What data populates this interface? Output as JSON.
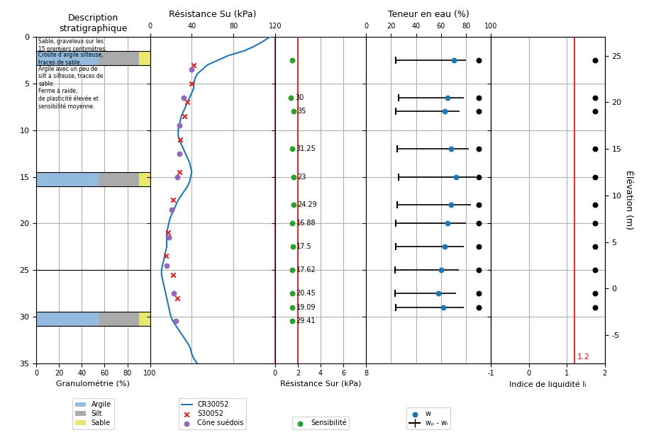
{
  "chart_data": [
    {
      "type": "bar",
      "orientation": "horizontal",
      "stacked": true,
      "title": "Description\nstratigraphique",
      "x_label": "Granulométrie (%)",
      "band_top": [
        1.5,
        14.5,
        29.5
      ],
      "band_bottom": [
        3.0,
        16.0,
        31.0
      ],
      "series": [
        {
          "name": "Argile",
          "color": "#92BBDD",
          "values": [
            55,
            55,
            55
          ]
        },
        {
          "name": "Silt",
          "color": "#AAAAAA",
          "values": [
            35,
            35,
            35
          ]
        },
        {
          "name": "Sable",
          "color": "#E8E870",
          "values": [
            10,
            10,
            10
          ]
        }
      ],
      "hlines": [
        0.0,
        1.5,
        3.0,
        14.5,
        16.0,
        25.0,
        29.5,
        31.0
      ],
      "annotations": [
        {
          "text": "Sable, graveleux sur les\n15 premiers centimètres.",
          "x": 2,
          "y": 0.15
        },
        {
          "text": "Croûte d’argile silteuse,\ntraces de sable.",
          "x": 2,
          "y": 1.6
        },
        {
          "text": "Argile avec un peu de\nsilt à silteuse, traces de\nsable.\nFerme à raide,\nde plasticité élevée et\nsensibilité moyenne.",
          "x": 2,
          "y": 3.1
        }
      ],
      "xlim": [
        0,
        100
      ],
      "xticks": [
        0,
        20,
        40,
        60,
        80,
        100
      ],
      "ylim": [
        35,
        0
      ],
      "yticks": [
        0,
        5,
        10,
        15,
        20,
        25,
        30,
        35
      ],
      "grid": true,
      "legend": "lower center"
    },
    {
      "type": "line",
      "title": "Résistance Su (kPa)",
      "vlines": [
        {
          "x": 120,
          "color": "#FF0000"
        }
      ],
      "series": [
        {
          "name": "CR30052",
          "type": "line",
          "color": "#1f77b4",
          "line_style": "solid",
          "x": [
            115,
            108,
            100,
            90,
            75,
            65,
            55,
            50,
            45,
            43,
            42,
            42,
            40,
            38,
            36,
            34,
            32,
            30,
            29,
            28,
            27,
            27,
            28,
            30,
            32,
            34,
            36,
            38,
            39,
            40,
            39,
            38,
            36,
            33,
            30,
            27,
            25,
            23,
            21,
            19,
            18,
            17,
            16,
            16,
            16,
            16,
            15,
            14,
            13,
            12,
            11,
            11,
            12,
            13,
            14,
            15,
            16,
            17,
            18,
            19,
            20,
            22,
            25,
            28,
            31,
            34,
            37,
            39,
            40,
            42,
            45
          ],
          "y": [
            0.0,
            0.5,
            1.0,
            1.5,
            2.0,
            2.5,
            3.0,
            3.5,
            4.0,
            4.5,
            5.0,
            5.5,
            6.0,
            6.5,
            7.0,
            7.5,
            8.0,
            8.5,
            9.0,
            9.5,
            10.0,
            10.5,
            11.0,
            11.5,
            12.0,
            12.5,
            13.0,
            13.5,
            14.0,
            14.5,
            15.0,
            15.5,
            16.0,
            16.5,
            17.0,
            17.5,
            18.0,
            18.5,
            19.0,
            19.5,
            20.0,
            20.5,
            21.0,
            21.5,
            22.0,
            22.5,
            23.0,
            23.5,
            24.0,
            24.5,
            25.0,
            25.5,
            26.0,
            26.5,
            27.0,
            27.5,
            28.0,
            28.5,
            29.0,
            29.5,
            30.0,
            30.5,
            31.0,
            31.5,
            32.0,
            32.5,
            33.0,
            33.5,
            34.0,
            34.5,
            35.0
          ]
        },
        {
          "name": "S30052",
          "type": "scatter",
          "marker": "x",
          "color": "#d62728",
          "x": [
            42,
            40,
            36,
            33,
            29,
            28,
            22,
            17,
            15,
            22,
            26
          ],
          "y": [
            3.0,
            5.0,
            7.0,
            8.5,
            11.0,
            14.5,
            17.5,
            21.0,
            23.5,
            25.5,
            28.0
          ]
        },
        {
          "name": "Cône suédois",
          "type": "scatter",
          "marker": "o",
          "color": "#9467bd",
          "x": [
            40,
            32,
            28,
            28,
            26,
            21,
            18,
            16,
            23,
            25
          ],
          "y": [
            3.5,
            6.5,
            9.5,
            12.5,
            15.0,
            18.5,
            21.5,
            24.5,
            27.5,
            30.5
          ]
        }
      ],
      "xlim": [
        0,
        120
      ],
      "xticks": [
        0,
        40,
        80,
        120
      ],
      "ylim": [
        35,
        0
      ],
      "yticks": [
        0,
        5,
        10,
        15,
        20,
        25,
        30,
        35
      ],
      "tick_labels": "x",
      "grid": true,
      "legend": "lower center"
    },
    {
      "type": "scatter",
      "x_label": "Résistance Sur (kPa)",
      "vlines": [
        {
          "x": 2,
          "color": "#FF0000"
        }
      ],
      "series": [
        {
          "name": "Sensibilité",
          "type": "scatter",
          "marker": "o",
          "color": "#2ca02c",
          "x": [
            1.5,
            1.4,
            1.6,
            1.5,
            1.6,
            1.6,
            1.5,
            1.55,
            1.5,
            1.5,
            1.5,
            1.5
          ],
          "y": [
            2.5,
            6.5,
            8.0,
            12.0,
            15.0,
            18.0,
            20.0,
            22.5,
            25.0,
            27.5,
            29.0,
            30.5
          ],
          "point_labels": [
            null,
            "30",
            "35",
            "31.25",
            "23",
            "24.29",
            "16.88",
            "17.5",
            "17.62",
            "20.45",
            "19.09",
            "29.41"
          ]
        }
      ],
      "xlim": [
        0,
        8
      ],
      "xticks": [
        0,
        2,
        4,
        6,
        8
      ],
      "ylim": [
        35,
        0
      ],
      "yticks": [
        0,
        5,
        10,
        15,
        20,
        25,
        30,
        35
      ],
      "tick_labels": "x",
      "grid": true,
      "legend": "lower center"
    },
    {
      "type": "scatter",
      "title": "Teneur en eau (%)",
      "series": [
        {
          "name": "w",
          "type": "scatter",
          "marker": "o",
          "color": "#1f77b4",
          "x": [
            70,
            65,
            63,
            68,
            72,
            68,
            65,
            63,
            60,
            58,
            62
          ],
          "y": [
            2.5,
            6.5,
            8.0,
            12.0,
            15.0,
            18.0,
            20.0,
            22.5,
            25.0,
            27.5,
            29.0
          ]
        },
        {
          "name": "wₚ - wₗ",
          "type": "range",
          "color": "#000000",
          "low": [
            24,
            26,
            24,
            25,
            26,
            25,
            24,
            24,
            23,
            23,
            24
          ],
          "high": [
            80,
            78,
            75,
            82,
            88,
            84,
            80,
            78,
            74,
            72,
            78
          ],
          "y": [
            2.5,
            6.5,
            8.0,
            12.0,
            15.0,
            18.0,
            20.0,
            22.5,
            25.0,
            27.5,
            29.0
          ]
        },
        {
          "type": "scatter",
          "marker": "o",
          "color": "#000000",
          "x": [
            90,
            90,
            90,
            90,
            90,
            90,
            90,
            90,
            90,
            90,
            90
          ],
          "y": [
            2.5,
            6.5,
            8.0,
            12.0,
            15.0,
            18.0,
            20.0,
            22.5,
            25.0,
            27.5,
            29.0
          ]
        }
      ],
      "xlim": [
        0,
        100
      ],
      "xticks": [
        0,
        20,
        40,
        60,
        80,
        100
      ],
      "ylim": [
        35,
        0
      ],
      "yticks": [
        0,
        5,
        10,
        15,
        20,
        25,
        30,
        35
      ],
      "tick_labels": "x",
      "grid": true,
      "legend": "lower center"
    },
    {
      "type": "scatter",
      "x_label": "Indice de liquidité Iₗ",
      "vlines": [
        {
          "x": 1.2,
          "color": "#FF0000",
          "label": "1.2"
        }
      ],
      "series": [
        {
          "type": "scatter",
          "marker": "o",
          "color": "#000000",
          "x": [
            1.75,
            1.75,
            1.75,
            1.75,
            1.75,
            1.75,
            1.75,
            1.75,
            1.75,
            1.75,
            1.75
          ],
          "y": [
            2.5,
            6.5,
            8.0,
            12.0,
            15.0,
            18.0,
            20.0,
            22.5,
            25.0,
            27.5,
            29.0
          ]
        }
      ],
      "xlim": [
        -1,
        2
      ],
      "xticks": [
        -1,
        0,
        1,
        2
      ],
      "ylim": [
        35,
        0
      ],
      "yticks": [
        0,
        5,
        10,
        15,
        20,
        25,
        30,
        35
      ],
      "y2_label": "Élévation (m)",
      "y2lim": [
        -8,
        27
      ],
      "y2ticks": [
        -5,
        0,
        5,
        10,
        15,
        20,
        25
      ],
      "tick_labels": "x",
      "grid": true
    }
  ]
}
